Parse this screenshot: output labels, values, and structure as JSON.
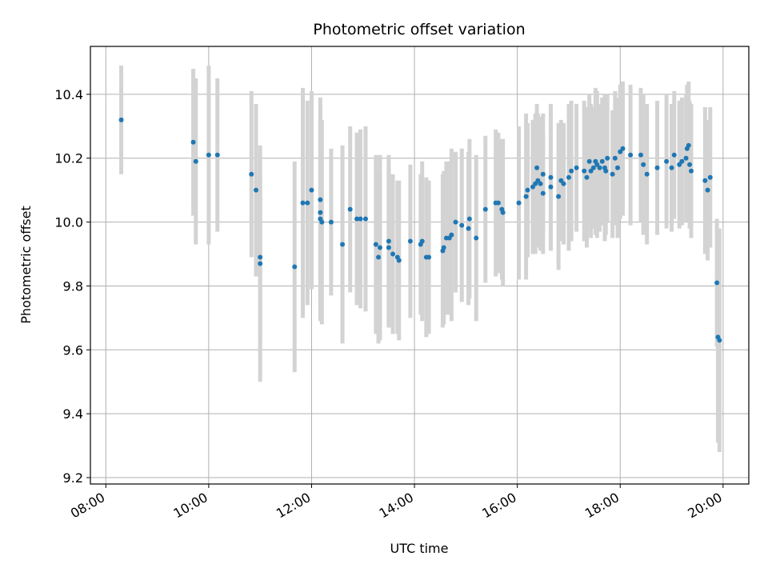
{
  "chart_data": {
    "type": "scatter",
    "title": "Photometric offset variation",
    "xlabel": "UTC time",
    "ylabel": "Photometric offset",
    "x_unit": "hours",
    "xlim": [
      7.7,
      20.5
    ],
    "ylim": [
      9.18,
      10.55
    ],
    "x_ticks": [
      {
        "value": 8,
        "label": "08:00"
      },
      {
        "value": 10,
        "label": "10:00"
      },
      {
        "value": 12,
        "label": "12:00"
      },
      {
        "value": 14,
        "label": "14:00"
      },
      {
        "value": 16,
        "label": "16:00"
      },
      {
        "value": 18,
        "label": "18:00"
      },
      {
        "value": 20,
        "label": "20:00"
      }
    ],
    "y_ticks": [
      {
        "value": 9.2,
        "label": "9.2"
      },
      {
        "value": 9.4,
        "label": "9.4"
      },
      {
        "value": 9.6,
        "label": "9.6"
      },
      {
        "value": 9.8,
        "label": "9.8"
      },
      {
        "value": 10.0,
        "label": "10.0"
      },
      {
        "value": 10.2,
        "label": "10.2"
      },
      {
        "value": 10.4,
        "label": "10.4"
      }
    ],
    "grid": true,
    "colors": {
      "point": "#1f77b4",
      "errorbar": "#d3d3d3",
      "grid": "#b0b0b0"
    },
    "series": [
      {
        "points": [
          [
            8.3,
            10.32,
            0.17
          ],
          [
            9.7,
            10.25,
            0.23
          ],
          [
            9.75,
            10.19,
            0.26
          ],
          [
            10.0,
            10.21,
            0.28
          ],
          [
            10.17,
            10.21,
            0.24
          ],
          [
            10.83,
            10.15,
            0.26
          ],
          [
            10.92,
            10.1,
            0.27
          ],
          [
            11.0,
            9.89,
            0.25
          ],
          [
            11.0,
            9.87,
            0.37
          ],
          [
            11.67,
            9.86,
            0.33
          ],
          [
            11.83,
            10.06,
            0.36
          ],
          [
            11.92,
            10.06,
            0.32
          ],
          [
            12.0,
            10.1,
            0.31
          ],
          [
            12.17,
            10.07,
            0.32
          ],
          [
            12.17,
            10.03,
            0.34
          ],
          [
            12.17,
            10.01,
            0.31
          ],
          [
            12.2,
            10.0,
            0.32
          ],
          [
            12.38,
            10.0,
            0.23
          ],
          [
            12.6,
            9.93,
            0.31
          ],
          [
            12.75,
            10.04,
            0.26
          ],
          [
            12.88,
            10.01,
            0.27
          ],
          [
            12.95,
            10.01,
            0.28
          ],
          [
            13.05,
            10.01,
            0.29
          ],
          [
            13.25,
            9.93,
            0.28
          ],
          [
            13.3,
            9.89,
            0.27
          ],
          [
            13.33,
            9.92,
            0.29
          ],
          [
            13.5,
            9.94,
            0.27
          ],
          [
            13.5,
            9.92,
            0.25
          ],
          [
            13.58,
            9.9,
            0.25
          ],
          [
            13.67,
            9.89,
            0.24
          ],
          [
            13.7,
            9.88,
            0.25
          ],
          [
            13.92,
            9.94,
            0.24
          ],
          [
            14.12,
            9.93,
            0.22
          ],
          [
            14.15,
            9.94,
            0.25
          ],
          [
            14.23,
            9.89,
            0.25
          ],
          [
            14.28,
            9.89,
            0.24
          ],
          [
            14.55,
            9.91,
            0.24
          ],
          [
            14.57,
            9.92,
            0.24
          ],
          [
            14.62,
            9.95,
            0.24
          ],
          [
            14.68,
            9.95,
            0.24
          ],
          [
            14.72,
            9.96,
            0.27
          ],
          [
            14.8,
            10.0,
            0.22
          ],
          [
            14.92,
            9.99,
            0.24
          ],
          [
            15.05,
            9.98,
            0.24
          ],
          [
            15.07,
            10.01,
            0.25
          ],
          [
            15.2,
            9.95,
            0.26
          ],
          [
            15.38,
            10.04,
            0.23
          ],
          [
            15.58,
            10.06,
            0.23
          ],
          [
            15.63,
            10.06,
            0.22
          ],
          [
            15.7,
            10.04,
            0.22
          ],
          [
            15.72,
            10.03,
            0.23
          ],
          [
            16.03,
            10.06,
            0.24
          ],
          [
            16.17,
            10.08,
            0.26
          ],
          [
            16.2,
            10.1,
            0.21
          ],
          [
            16.3,
            10.11,
            0.21
          ],
          [
            16.35,
            10.12,
            0.22
          ],
          [
            16.38,
            10.17,
            0.2
          ],
          [
            16.4,
            10.13,
            0.21
          ],
          [
            16.45,
            10.12,
            0.21
          ],
          [
            16.5,
            10.15,
            0.19
          ],
          [
            16.5,
            10.09,
            0.19
          ],
          [
            16.65,
            10.14,
            0.23
          ],
          [
            16.65,
            10.11,
            0.19
          ],
          [
            16.8,
            10.08,
            0.23
          ],
          [
            16.85,
            10.13,
            0.19
          ],
          [
            16.9,
            10.12,
            0.19
          ],
          [
            17.0,
            10.14,
            0.23
          ],
          [
            17.05,
            10.16,
            0.22
          ],
          [
            17.15,
            10.17,
            0.2
          ],
          [
            17.3,
            10.16,
            0.22
          ],
          [
            17.35,
            10.14,
            0.22
          ],
          [
            17.4,
            10.19,
            0.21
          ],
          [
            17.43,
            10.16,
            0.21
          ],
          [
            17.48,
            10.17,
            0.19
          ],
          [
            17.52,
            10.19,
            0.23
          ],
          [
            17.55,
            10.18,
            0.23
          ],
          [
            17.6,
            10.17,
            0.2
          ],
          [
            17.65,
            10.19,
            0.2
          ],
          [
            17.7,
            10.17,
            0.23
          ],
          [
            17.72,
            10.16,
            0.2
          ],
          [
            17.75,
            10.2,
            0.2
          ],
          [
            17.85,
            10.15,
            0.2
          ],
          [
            17.9,
            10.2,
            0.21
          ],
          [
            17.95,
            10.17,
            0.22
          ],
          [
            18.0,
            10.22,
            0.21
          ],
          [
            18.05,
            10.23,
            0.21
          ],
          [
            18.2,
            10.21,
            0.22
          ],
          [
            18.4,
            10.21,
            0.21
          ],
          [
            18.45,
            10.18,
            0.22
          ],
          [
            18.52,
            10.15,
            0.22
          ],
          [
            18.72,
            10.17,
            0.21
          ],
          [
            18.9,
            10.19,
            0.21
          ],
          [
            19.0,
            10.17,
            0.2
          ],
          [
            19.05,
            10.21,
            0.2
          ],
          [
            19.15,
            10.18,
            0.2
          ],
          [
            19.2,
            10.19,
            0.2
          ],
          [
            19.28,
            10.2,
            0.2
          ],
          [
            19.3,
            10.23,
            0.2
          ],
          [
            19.33,
            10.24,
            0.2
          ],
          [
            19.35,
            10.18,
            0.2
          ],
          [
            19.38,
            10.16,
            0.21
          ],
          [
            19.65,
            10.13,
            0.23
          ],
          [
            19.7,
            10.1,
            0.22
          ],
          [
            19.75,
            10.14,
            0.22
          ],
          [
            19.88,
            9.81,
            0.2
          ],
          [
            19.9,
            9.64,
            0.33
          ],
          [
            19.93,
            9.63,
            0.35
          ]
        ]
      }
    ]
  }
}
